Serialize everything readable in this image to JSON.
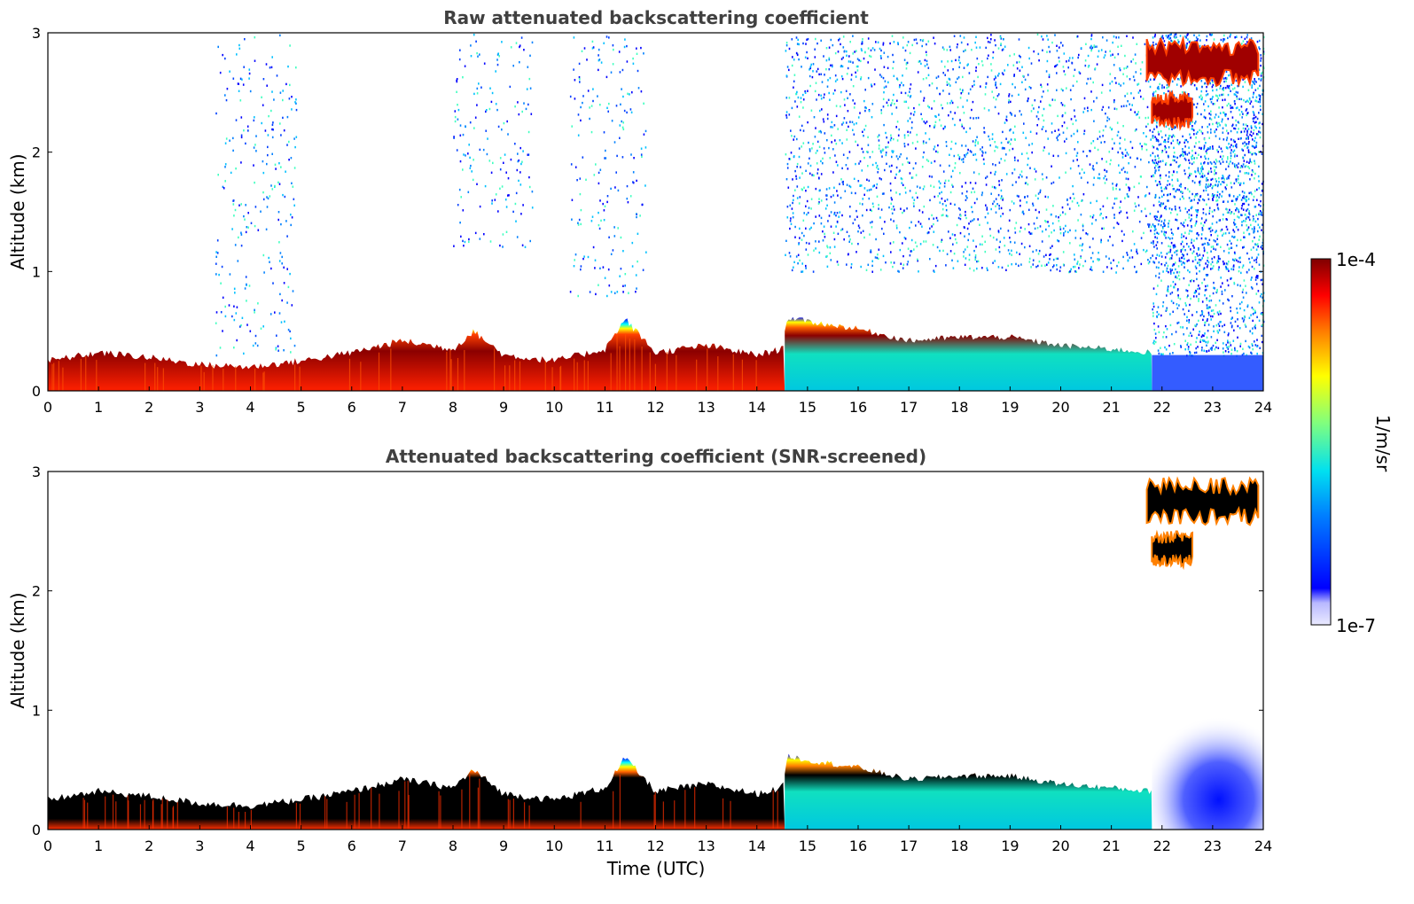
{
  "chart_data": [
    {
      "type": "heatmap",
      "title": "Raw attenuated backscattering coefficient",
      "xlabel": "",
      "ylabel": "Altitude (km)",
      "xlim": [
        0,
        24
      ],
      "ylim": [
        0,
        3
      ],
      "xticks": [
        "0",
        "1",
        "2",
        "3",
        "4",
        "5",
        "6",
        "7",
        "8",
        "9",
        "10",
        "11",
        "12",
        "13",
        "14",
        "15",
        "16",
        "17",
        "18",
        "19",
        "20",
        "21",
        "22",
        "23",
        "24"
      ],
      "yticks": [
        "0",
        "1",
        "2",
        "3"
      ],
      "layer_top_km": {
        "x": [
          0,
          1,
          2,
          3,
          4,
          5,
          6,
          7,
          8,
          8.4,
          9,
          10,
          11,
          11.4,
          12,
          13,
          14,
          14.5,
          14.6,
          15,
          16,
          17,
          18,
          19,
          20,
          21,
          21.8
        ],
        "y": [
          0.25,
          0.32,
          0.28,
          0.22,
          0.2,
          0.25,
          0.32,
          0.42,
          0.35,
          0.5,
          0.3,
          0.25,
          0.35,
          0.6,
          0.32,
          0.38,
          0.3,
          0.35,
          0.62,
          0.58,
          0.52,
          0.42,
          0.45,
          0.45,
          0.38,
          0.35,
          0.32
        ]
      },
      "cloud_patches": [
        {
          "x": [
            21.7,
            23.9
          ],
          "y": [
            2.55,
            2.95
          ]
        },
        {
          "x": [
            21.8,
            22.6
          ],
          "y": [
            2.2,
            2.5
          ]
        }
      ],
      "noise_regions": [
        {
          "x": [
            3.3,
            4.9
          ],
          "y": [
            0.3,
            3.0
          ],
          "level": "scattered"
        },
        {
          "x": [
            8.0,
            9.6
          ],
          "y": [
            1.2,
            3.0
          ],
          "level": "scattered"
        },
        {
          "x": [
            10.3,
            11.8
          ],
          "y": [
            0.8,
            3.0
          ],
          "level": "scattered"
        },
        {
          "x": [
            14.55,
            24
          ],
          "y": [
            1.0,
            3.0
          ],
          "level": "dense"
        },
        {
          "x": [
            21.8,
            24
          ],
          "y": [
            0.3,
            3.0
          ],
          "level": "very dense"
        }
      ]
    },
    {
      "type": "heatmap",
      "title": "Attenuated backscattering coefficient (SNR-screened)",
      "xlabel": "Time (UTC)",
      "ylabel": "Altitude (km)",
      "xlim": [
        0,
        24
      ],
      "ylim": [
        0,
        3
      ],
      "xticks": [
        "0",
        "1",
        "2",
        "3",
        "4",
        "5",
        "6",
        "7",
        "8",
        "9",
        "10",
        "11",
        "12",
        "13",
        "14",
        "15",
        "16",
        "17",
        "18",
        "19",
        "20",
        "21",
        "22",
        "23",
        "24"
      ],
      "yticks": [
        "0",
        "1",
        "2",
        "3"
      ],
      "layer_top_km": {
        "x": [
          0,
          1,
          2,
          3,
          4,
          5,
          6,
          7,
          8,
          8.4,
          9,
          10,
          11,
          11.4,
          12,
          13,
          14,
          14.5,
          14.6,
          15,
          16,
          17,
          18,
          19,
          20,
          21,
          21.8
        ],
        "y": [
          0.25,
          0.32,
          0.28,
          0.22,
          0.2,
          0.25,
          0.32,
          0.42,
          0.35,
          0.5,
          0.3,
          0.25,
          0.35,
          0.6,
          0.32,
          0.38,
          0.3,
          0.35,
          0.62,
          0.58,
          0.52,
          0.42,
          0.45,
          0.45,
          0.38,
          0.35,
          0.32
        ]
      },
      "cloud_patches": [
        {
          "x": [
            21.7,
            23.9
          ],
          "y": [
            2.55,
            2.95
          ]
        },
        {
          "x": [
            21.8,
            22.6
          ],
          "y": [
            2.2,
            2.5
          ]
        }
      ],
      "faint_region": {
        "x": [
          21.8,
          24
        ],
        "y": [
          0.0,
          1.0
        ]
      }
    }
  ],
  "colorbar": {
    "label": "1/m/sr",
    "max_label": "1e-4",
    "min_label": "1e-7",
    "scale": "log"
  },
  "colors": {
    "jet_low": "#00007f",
    "jet_mid": "#7fff7f",
    "jet_high": "#7f0000",
    "clipped": "#000000",
    "title": "#404040"
  }
}
